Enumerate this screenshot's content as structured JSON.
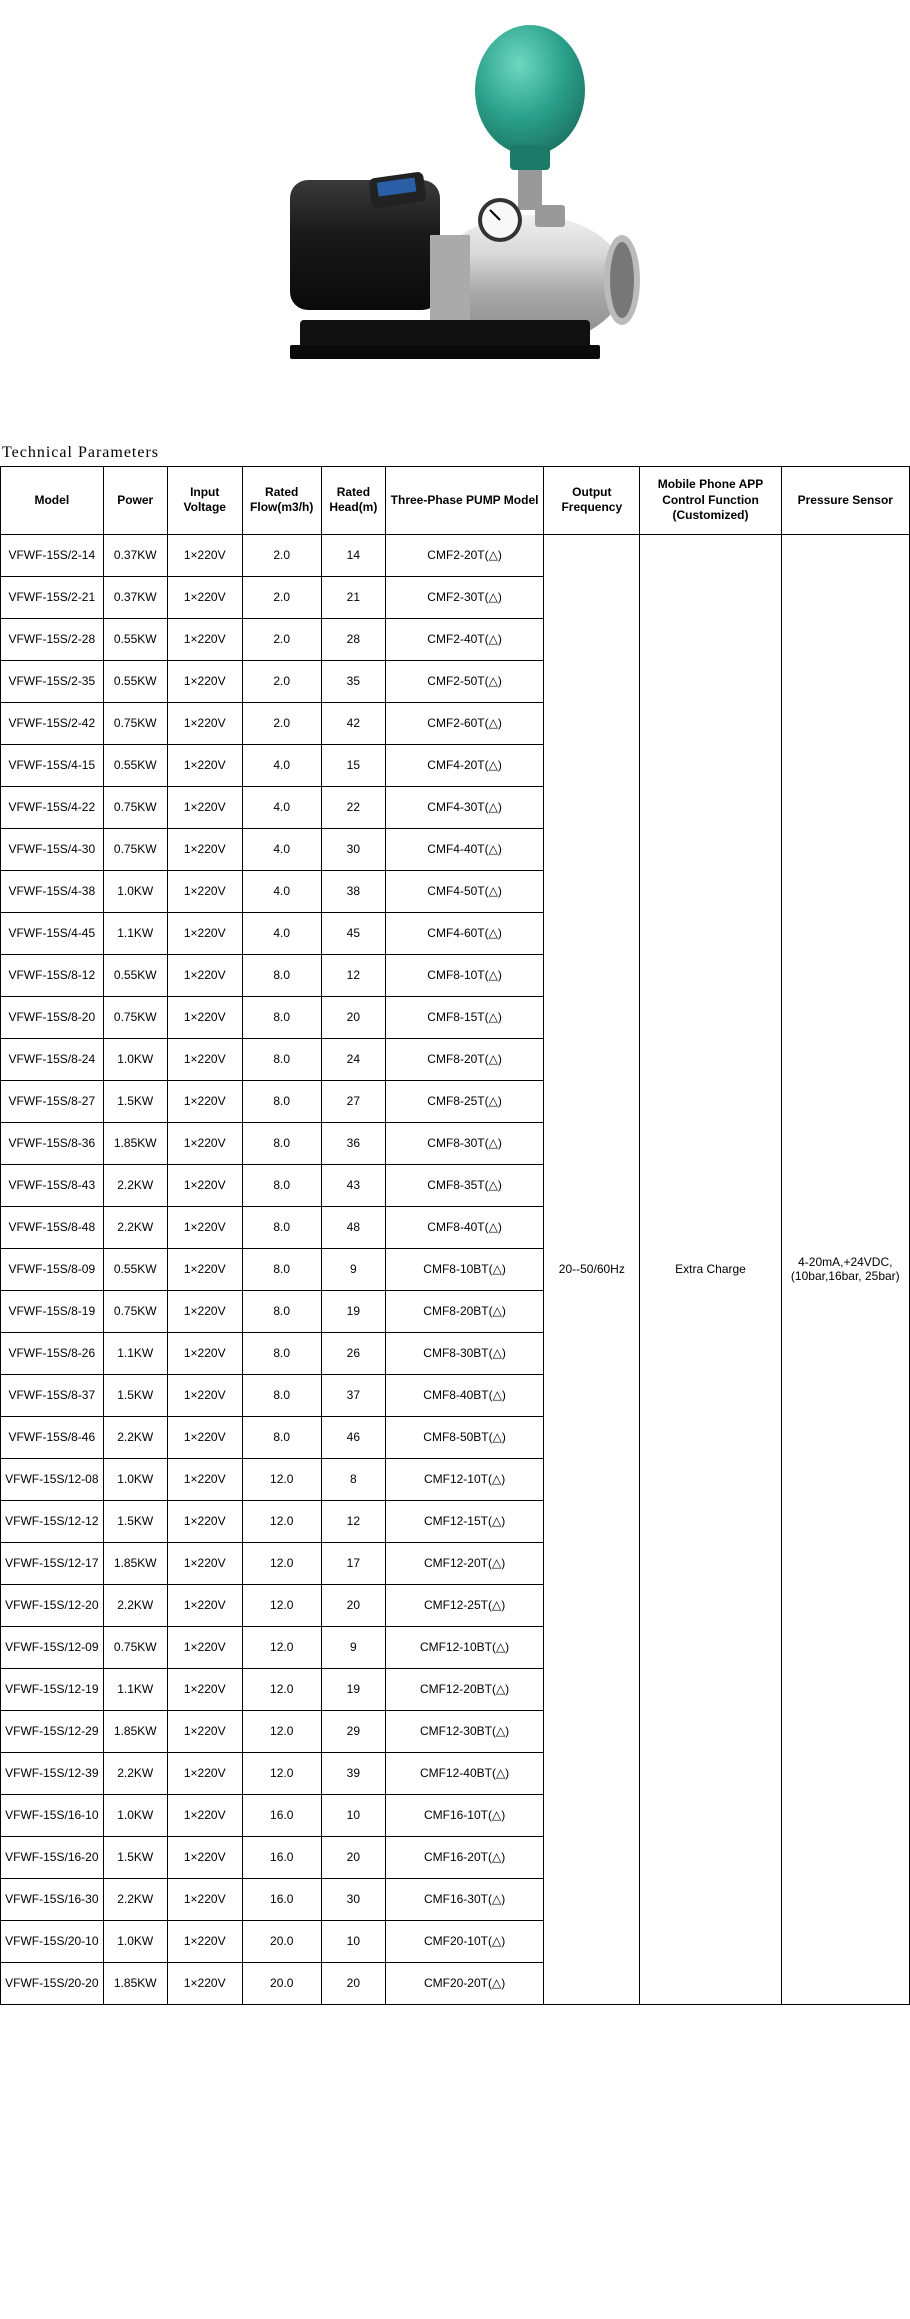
{
  "section_title": "Technical Parameters",
  "image": {
    "tank_color": "#2aa08a",
    "tank_highlight": "#4fc4ab",
    "motor_color": "#1a1a1a",
    "pump_body_color": "#c8c8c8",
    "pump_body_shine": "#e8e8e8",
    "base_color": "#1a1a1a",
    "gauge_face": "#f8f8f8"
  },
  "table": {
    "columns": [
      "Model",
      "Power",
      "Input Voltage",
      "Rated Flow(m3/h)",
      "Rated Head(m)",
      "Three-Phase PUMP Model",
      "Output Frequency",
      "Mobile Phone APP Control Function (Customized)",
      "Pressure Sensor"
    ],
    "shared": {
      "output_frequency": "20--50/60Hz",
      "app_control": "Extra Charge",
      "pressure_sensor": "4-20mA,+24VDC, (10bar,16bar, 25bar)"
    },
    "rows": [
      {
        "model": "VFWF-15S/2-14",
        "power": "0.37KW",
        "voltage": "1×220V",
        "flow": "2.0",
        "head": "14",
        "pump": "CMF2-20T(△)"
      },
      {
        "model": "VFWF-15S/2-21",
        "power": "0.37KW",
        "voltage": "1×220V",
        "flow": "2.0",
        "head": "21",
        "pump": "CMF2-30T(△)"
      },
      {
        "model": "VFWF-15S/2-28",
        "power": "0.55KW",
        "voltage": "1×220V",
        "flow": "2.0",
        "head": "28",
        "pump": "CMF2-40T(△)"
      },
      {
        "model": "VFWF-15S/2-35",
        "power": "0.55KW",
        "voltage": "1×220V",
        "flow": "2.0",
        "head": "35",
        "pump": "CMF2-50T(△)"
      },
      {
        "model": "VFWF-15S/2-42",
        "power": "0.75KW",
        "voltage": "1×220V",
        "flow": "2.0",
        "head": "42",
        "pump": "CMF2-60T(△)"
      },
      {
        "model": "VFWF-15S/4-15",
        "power": "0.55KW",
        "voltage": "1×220V",
        "flow": "4.0",
        "head": "15",
        "pump": "CMF4-20T(△)"
      },
      {
        "model": "VFWF-15S/4-22",
        "power": "0.75KW",
        "voltage": "1×220V",
        "flow": "4.0",
        "head": "22",
        "pump": "CMF4-30T(△)"
      },
      {
        "model": "VFWF-15S/4-30",
        "power": "0.75KW",
        "voltage": "1×220V",
        "flow": "4.0",
        "head": "30",
        "pump": "CMF4-40T(△)"
      },
      {
        "model": "VFWF-15S/4-38",
        "power": "1.0KW",
        "voltage": "1×220V",
        "flow": "4.0",
        "head": "38",
        "pump": "CMF4-50T(△)"
      },
      {
        "model": "VFWF-15S/4-45",
        "power": "1.1KW",
        "voltage": "1×220V",
        "flow": "4.0",
        "head": "45",
        "pump": "CMF4-60T(△)"
      },
      {
        "model": "VFWF-15S/8-12",
        "power": "0.55KW",
        "voltage": "1×220V",
        "flow": "8.0",
        "head": "12",
        "pump": "CMF8-10T(△)"
      },
      {
        "model": "VFWF-15S/8-20",
        "power": "0.75KW",
        "voltage": "1×220V",
        "flow": "8.0",
        "head": "20",
        "pump": "CMF8-15T(△)"
      },
      {
        "model": "VFWF-15S/8-24",
        "power": "1.0KW",
        "voltage": "1×220V",
        "flow": "8.0",
        "head": "24",
        "pump": "CMF8-20T(△)"
      },
      {
        "model": "VFWF-15S/8-27",
        "power": "1.5KW",
        "voltage": "1×220V",
        "flow": "8.0",
        "head": "27",
        "pump": "CMF8-25T(△)"
      },
      {
        "model": "VFWF-15S/8-36",
        "power": "1.85KW",
        "voltage": "1×220V",
        "flow": "8.0",
        "head": "36",
        "pump": "CMF8-30T(△)"
      },
      {
        "model": "VFWF-15S/8-43",
        "power": "2.2KW",
        "voltage": "1×220V",
        "flow": "8.0",
        "head": "43",
        "pump": "CMF8-35T(△)"
      },
      {
        "model": "VFWF-15S/8-48",
        "power": "2.2KW",
        "voltage": "1×220V",
        "flow": "8.0",
        "head": "48",
        "pump": "CMF8-40T(△)"
      },
      {
        "model": "VFWF-15S/8-09",
        "power": "0.55KW",
        "voltage": "1×220V",
        "flow": "8.0",
        "head": "9",
        "pump": "CMF8-10BT(△)"
      },
      {
        "model": "VFWF-15S/8-19",
        "power": "0.75KW",
        "voltage": "1×220V",
        "flow": "8.0",
        "head": "19",
        "pump": "CMF8-20BT(△)"
      },
      {
        "model": "VFWF-15S/8-26",
        "power": "1.1KW",
        "voltage": "1×220V",
        "flow": "8.0",
        "head": "26",
        "pump": "CMF8-30BT(△)"
      },
      {
        "model": "VFWF-15S/8-37",
        "power": "1.5KW",
        "voltage": "1×220V",
        "flow": "8.0",
        "head": "37",
        "pump": "CMF8-40BT(△)"
      },
      {
        "model": "VFWF-15S/8-46",
        "power": "2.2KW",
        "voltage": "1×220V",
        "flow": "8.0",
        "head": "46",
        "pump": "CMF8-50BT(△)"
      },
      {
        "model": "VFWF-15S/12-08",
        "power": "1.0KW",
        "voltage": "1×220V",
        "flow": "12.0",
        "head": "8",
        "pump": "CMF12-10T(△)"
      },
      {
        "model": "VFWF-15S/12-12",
        "power": "1.5KW",
        "voltage": "1×220V",
        "flow": "12.0",
        "head": "12",
        "pump": "CMF12-15T(△)"
      },
      {
        "model": "VFWF-15S/12-17",
        "power": "1.85KW",
        "voltage": "1×220V",
        "flow": "12.0",
        "head": "17",
        "pump": "CMF12-20T(△)"
      },
      {
        "model": "VFWF-15S/12-20",
        "power": "2.2KW",
        "voltage": "1×220V",
        "flow": "12.0",
        "head": "20",
        "pump": "CMF12-25T(△)"
      },
      {
        "model": "VFWF-15S/12-09",
        "power": "0.75KW",
        "voltage": "1×220V",
        "flow": "12.0",
        "head": "9",
        "pump": "CMF12-10BT(△)"
      },
      {
        "model": "VFWF-15S/12-19",
        "power": "1.1KW",
        "voltage": "1×220V",
        "flow": "12.0",
        "head": "19",
        "pump": "CMF12-20BT(△)"
      },
      {
        "model": "VFWF-15S/12-29",
        "power": "1.85KW",
        "voltage": "1×220V",
        "flow": "12.0",
        "head": "29",
        "pump": "CMF12-30BT(△)"
      },
      {
        "model": "VFWF-15S/12-39",
        "power": "2.2KW",
        "voltage": "1×220V",
        "flow": "12.0",
        "head": "39",
        "pump": "CMF12-40BT(△)"
      },
      {
        "model": "VFWF-15S/16-10",
        "power": "1.0KW",
        "voltage": "1×220V",
        "flow": "16.0",
        "head": "10",
        "pump": "CMF16-10T(△)"
      },
      {
        "model": "VFWF-15S/16-20",
        "power": "1.5KW",
        "voltage": "1×220V",
        "flow": "16.0",
        "head": "20",
        "pump": "CMF16-20T(△)"
      },
      {
        "model": "VFWF-15S/16-30",
        "power": "2.2KW",
        "voltage": "1×220V",
        "flow": "16.0",
        "head": "30",
        "pump": "CMF16-30T(△)"
      },
      {
        "model": "VFWF-15S/20-10",
        "power": "1.0KW",
        "voltage": "1×220V",
        "flow": "20.0",
        "head": "10",
        "pump": "CMF20-10T(△)"
      },
      {
        "model": "VFWF-15S/20-20",
        "power": "1.85KW",
        "voltage": "1×220V",
        "flow": "20.0",
        "head": "20",
        "pump": "CMF20-20T(△)"
      }
    ]
  }
}
